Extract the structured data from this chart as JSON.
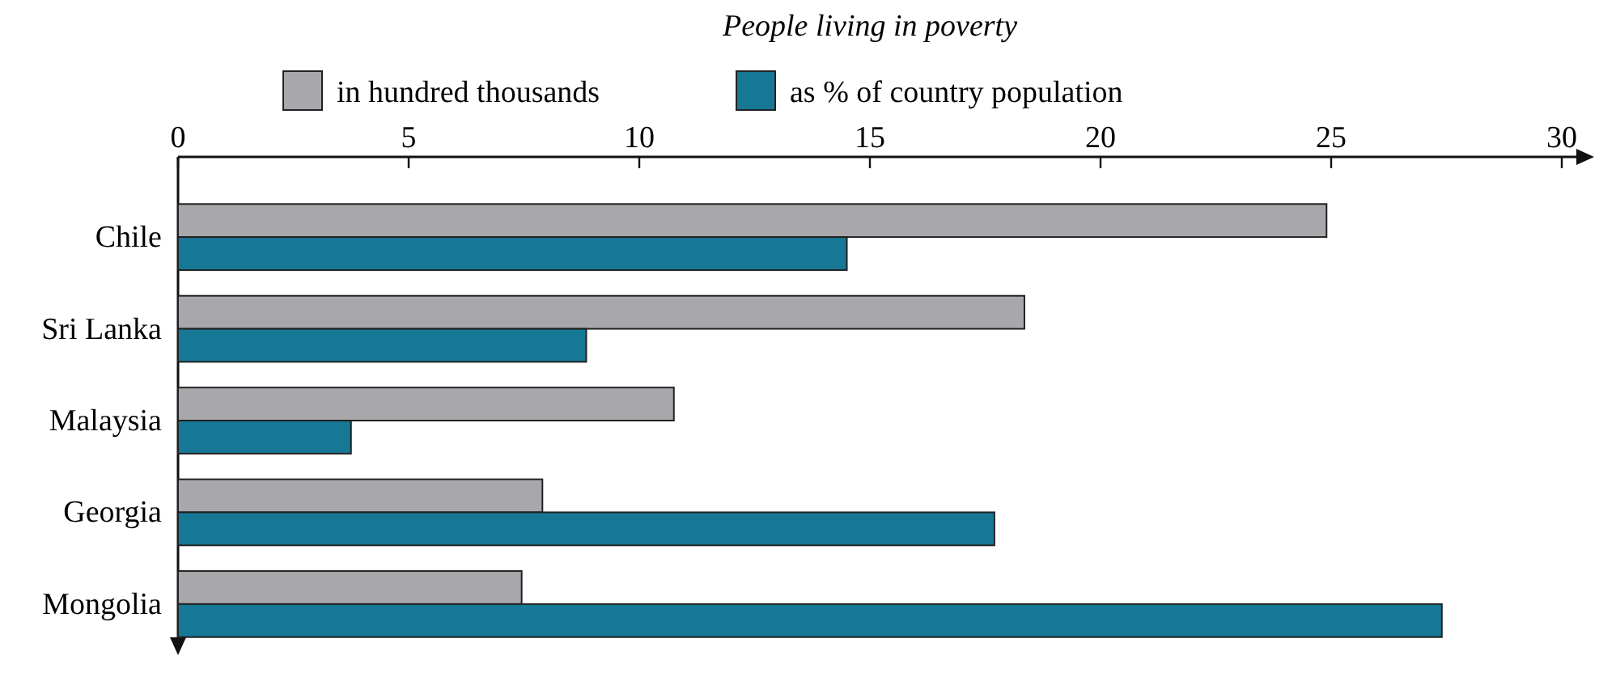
{
  "chart_data": {
    "type": "bar",
    "orientation": "horizontal",
    "title": "People living in poverty",
    "categories": [
      "Chile",
      "Sri Lanka",
      "Malaysia",
      "Georgia",
      "Mongolia"
    ],
    "series": [
      {
        "name": "in hundred thousands",
        "color": "#a8a8ac",
        "values": [
          24.9,
          18.35,
          10.75,
          7.9,
          7.45
        ]
      },
      {
        "name": "as % of country population",
        "color": "#177896",
        "values": [
          14.5,
          8.85,
          3.75,
          17.7,
          27.4
        ]
      }
    ],
    "xlim": [
      0,
      30
    ],
    "xticks": [
      0,
      5,
      10,
      15,
      20,
      25,
      30
    ],
    "legend": "top"
  }
}
